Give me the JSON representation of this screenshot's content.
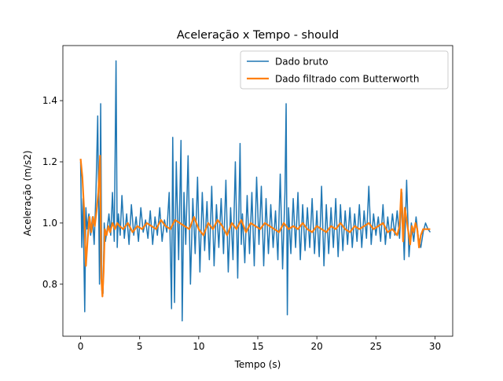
{
  "chart_data": {
    "type": "line",
    "title": "Aceleração x Tempo - should",
    "xlabel": "Tempo (s)",
    "ylabel": "Aceleração (m/s2)",
    "xlim": [
      -1.5,
      31.5
    ],
    "ylim": [
      0.63,
      1.58
    ],
    "xticks": [
      0,
      5,
      10,
      15,
      20,
      25,
      30
    ],
    "yticks": [
      0.8,
      1.0,
      1.2,
      1.4
    ],
    "xtick_labels": [
      "0",
      "5",
      "10",
      "15",
      "20",
      "25",
      "30"
    ],
    "ytick_labels": [
      "0.8",
      "1.0",
      "1.2",
      "1.4"
    ],
    "grid": false,
    "legend_position": "top-right",
    "series": [
      {
        "name": "Dado bruto",
        "color": "#1f77b4",
        "x": [
          0.0,
          0.1,
          0.2,
          0.35,
          0.45,
          0.55,
          0.7,
          0.85,
          1.0,
          1.15,
          1.3,
          1.45,
          1.6,
          1.7,
          1.8,
          1.9,
          2.0,
          2.1,
          2.25,
          2.4,
          2.55,
          2.7,
          2.85,
          3.0,
          3.1,
          3.2,
          3.35,
          3.5,
          3.7,
          3.9,
          4.1,
          4.3,
          4.5,
          4.7,
          4.9,
          5.1,
          5.3,
          5.5,
          5.7,
          5.9,
          6.1,
          6.3,
          6.5,
          6.7,
          6.9,
          7.1,
          7.3,
          7.5,
          7.7,
          7.8,
          7.95,
          8.1,
          8.3,
          8.5,
          8.6,
          8.75,
          8.9,
          9.1,
          9.3,
          9.5,
          9.7,
          9.9,
          10.1,
          10.3,
          10.5,
          10.7,
          10.9,
          11.1,
          11.3,
          11.5,
          11.7,
          11.9,
          12.1,
          12.3,
          12.5,
          12.7,
          12.9,
          13.1,
          13.3,
          13.5,
          13.6,
          13.7,
          13.9,
          14.1,
          14.3,
          14.5,
          14.7,
          14.9,
          15.1,
          15.3,
          15.5,
          15.7,
          15.9,
          16.1,
          16.3,
          16.5,
          16.7,
          16.9,
          17.1,
          17.3,
          17.4,
          17.5,
          17.6,
          17.8,
          18.0,
          18.2,
          18.4,
          18.6,
          18.8,
          19.0,
          19.2,
          19.4,
          19.6,
          19.8,
          20.0,
          20.2,
          20.4,
          20.6,
          20.8,
          21.0,
          21.2,
          21.4,
          21.6,
          21.8,
          22.0,
          22.2,
          22.4,
          22.6,
          22.8,
          23.0,
          23.2,
          23.4,
          23.6,
          23.8,
          24.0,
          24.2,
          24.4,
          24.6,
          24.8,
          25.0,
          25.2,
          25.4,
          25.6,
          25.8,
          26.0,
          26.2,
          26.4,
          26.6,
          26.8,
          27.0,
          27.2,
          27.4,
          27.6,
          27.8,
          28.0,
          28.2,
          28.4,
          28.6,
          28.8,
          29.0,
          29.2,
          29.4,
          29.6
        ],
        "y": [
          1.2,
          0.92,
          1.08,
          0.71,
          1.05,
          0.98,
          1.03,
          0.96,
          1.02,
          0.93,
          1.1,
          1.35,
          0.8,
          1.39,
          0.78,
          0.77,
          1.0,
          0.94,
          0.98,
          1.03,
          0.96,
          1.1,
          0.94,
          1.53,
          0.92,
          1.03,
          0.96,
          1.09,
          0.95,
          1.03,
          0.93,
          1.06,
          0.96,
          1.02,
          0.94,
          1.05,
          0.97,
          1.01,
          0.95,
          1.04,
          0.93,
          1.02,
          0.96,
          1.05,
          0.94,
          1.01,
          0.97,
          1.1,
          0.72,
          1.28,
          0.74,
          1.2,
          0.88,
          1.27,
          0.68,
          1.1,
          0.93,
          1.22,
          0.8,
          1.08,
          0.9,
          1.15,
          0.84,
          1.1,
          0.91,
          1.07,
          0.88,
          1.12,
          0.86,
          1.06,
          0.92,
          1.08,
          0.9,
          1.14,
          0.84,
          1.05,
          0.88,
          1.2,
          0.82,
          1.26,
          0.93,
          1.03,
          0.87,
          1.09,
          0.9,
          1.1,
          0.86,
          1.15,
          0.93,
          1.12,
          0.86,
          1.08,
          0.9,
          1.06,
          0.92,
          1.04,
          0.88,
          1.16,
          0.85,
          1.1,
          1.39,
          0.7,
          1.05,
          0.9,
          1.08,
          0.92,
          1.1,
          0.88,
          1.06,
          0.91,
          1.05,
          0.92,
          1.08,
          0.9,
          1.04,
          0.89,
          1.12,
          0.86,
          1.06,
          0.9,
          1.05,
          0.92,
          1.08,
          0.89,
          1.06,
          0.91,
          1.04,
          0.93,
          1.05,
          0.92,
          1.03,
          0.94,
          1.06,
          0.92,
          1.04,
          0.95,
          1.12,
          0.93,
          1.03,
          0.96,
          1.02,
          0.94,
          1.06,
          0.93,
          1.02,
          0.95,
          1.03,
          0.96,
          1.04,
          0.95,
          1.1,
          0.88,
          1.14,
          0.89,
          1.0,
          0.94,
          1.02,
          0.95,
          0.92,
          0.97,
          1.0,
          0.98,
          0.97
        ]
      },
      {
        "name": "Dado filtrado com Butterworth",
        "color": "#ff7f0e",
        "x": [
          0.0,
          0.15,
          0.3,
          0.45,
          0.6,
          0.75,
          0.9,
          1.05,
          1.2,
          1.35,
          1.5,
          1.65,
          1.75,
          1.85,
          1.95,
          2.05,
          2.2,
          2.35,
          2.5,
          2.7,
          2.9,
          3.1,
          3.3,
          3.6,
          4.0,
          4.4,
          4.8,
          5.2,
          5.6,
          6.0,
          6.4,
          6.8,
          7.2,
          7.6,
          8.0,
          8.4,
          8.8,
          9.2,
          9.6,
          10.0,
          10.4,
          10.8,
          11.2,
          11.6,
          12.0,
          12.4,
          12.8,
          13.2,
          13.6,
          14.0,
          14.4,
          14.8,
          15.2,
          15.6,
          16.0,
          16.4,
          16.8,
          17.2,
          17.6,
          18.0,
          18.4,
          18.8,
          19.2,
          19.6,
          20.0,
          20.4,
          20.8,
          21.2,
          21.6,
          22.0,
          22.4,
          22.8,
          23.2,
          23.6,
          24.0,
          24.4,
          24.8,
          25.2,
          25.6,
          26.0,
          26.4,
          26.8,
          27.0,
          27.15,
          27.3,
          27.45,
          27.6,
          27.75,
          27.9,
          28.05,
          28.2,
          28.35,
          28.5,
          28.65,
          28.8,
          29.0,
          29.3,
          29.6
        ],
        "y": [
          1.21,
          1.15,
          1.04,
          0.86,
          0.95,
          1.02,
          0.97,
          1.02,
          0.99,
          1.04,
          1.1,
          1.22,
          0.82,
          0.76,
          0.84,
          0.98,
          0.96,
          0.99,
          0.97,
          1.0,
          0.98,
          1.0,
          0.99,
          0.98,
          1.0,
          0.97,
          0.99,
          0.98,
          1.0,
          0.99,
          0.98,
          1.01,
          0.99,
          0.98,
          1.01,
          1.0,
          0.99,
          0.98,
          1.02,
          0.98,
          0.96,
          1.0,
          0.98,
          1.01,
          0.99,
          0.96,
          1.0,
          0.98,
          1.01,
          0.97,
          1.0,
          0.99,
          0.98,
          1.0,
          0.99,
          0.98,
          0.97,
          1.0,
          0.98,
          0.99,
          0.98,
          1.0,
          0.98,
          0.97,
          0.99,
          0.98,
          0.97,
          0.99,
          0.98,
          1.0,
          0.98,
          0.97,
          0.99,
          0.98,
          0.99,
          1.0,
          0.98,
          0.99,
          1.0,
          0.97,
          0.98,
          0.96,
          0.99,
          1.11,
          0.94,
          1.05,
          1.01,
          0.97,
          0.93,
          0.99,
          0.97,
          1.0,
          0.98,
          0.92,
          0.96,
          0.98,
          0.98,
          0.98
        ]
      }
    ]
  }
}
